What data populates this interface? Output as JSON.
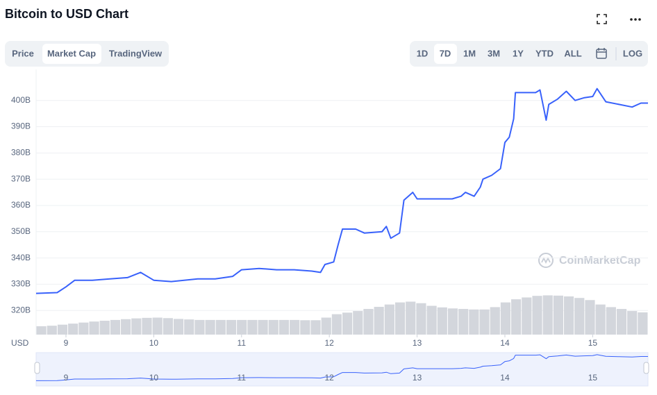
{
  "ui": {
    "title": "Bitcoin to USD Chart",
    "tabs": [
      "Price",
      "Market Cap",
      "TradingView"
    ],
    "active_tab": 1,
    "ranges": [
      "1D",
      "7D",
      "1M",
      "3M",
      "1Y",
      "YTD",
      "ALL"
    ],
    "active_range": 1,
    "log": "LOG",
    "currency": "USD",
    "watermark": "CoinMarketCap"
  },
  "chart_data": {
    "type": "line",
    "xlim": [
      8.66,
      15.63
    ],
    "xticks": [
      9,
      10,
      11,
      12,
      13,
      14,
      15
    ],
    "ylim": [
      310.8,
      410.5
    ],
    "yticks": [
      {
        "value": 320,
        "label": "320B"
      },
      {
        "value": 330,
        "label": "330B"
      },
      {
        "value": 340,
        "label": "340B"
      },
      {
        "value": 350,
        "label": "350B"
      },
      {
        "value": 360,
        "label": "360B"
      },
      {
        "value": 370,
        "label": "370B"
      },
      {
        "value": 380,
        "label": "380B"
      },
      {
        "value": 390,
        "label": "390B"
      },
      {
        "value": 400,
        "label": "400B"
      }
    ],
    "y2lim": [
      0,
      100
    ],
    "grid": true,
    "series": [
      {
        "color": "#3861fb",
        "x": [
          8.66,
          8.9,
          9.0,
          9.1,
          9.3,
          9.5,
          9.7,
          9.85,
          10.0,
          10.2,
          10.5,
          10.7,
          10.9,
          11.0,
          11.2,
          11.4,
          11.6,
          11.8,
          11.9,
          11.95,
          12.05,
          12.1,
          12.15,
          12.3,
          12.4,
          12.6,
          12.65,
          12.7,
          12.8,
          12.85,
          12.95,
          13.0,
          13.2,
          13.4,
          13.5,
          13.55,
          13.65,
          13.72,
          13.75,
          13.85,
          13.95,
          14.0,
          14.05,
          14.1,
          14.12,
          14.2,
          14.35,
          14.4,
          14.47,
          14.5,
          14.6,
          14.7,
          14.8,
          14.9,
          15.0,
          15.05,
          15.15,
          15.3,
          15.45,
          15.55,
          15.63
        ],
        "values": [
          326.5,
          326.8,
          329,
          331.5,
          331.5,
          332,
          332.5,
          334.5,
          331.5,
          331,
          332,
          332,
          333,
          335.5,
          336,
          335.5,
          335.5,
          335,
          334.5,
          337.5,
          338.5,
          345,
          351,
          351,
          349.5,
          350,
          352,
          347.5,
          349.5,
          362,
          365,
          362.5,
          362.5,
          362.5,
          363.5,
          365,
          363.5,
          367,
          370,
          371.5,
          374,
          384,
          386,
          393,
          403,
          403,
          403,
          404,
          392.5,
          398.5,
          400.5,
          403.5,
          400,
          401,
          401.5,
          404.5,
          399.5,
          398.5,
          397.5,
          399,
          399
        ]
      },
      {
        "color": "#d3d6dc",
        "axis": "y2",
        "type": "bar",
        "values": [
          3.2,
          3.4,
          3.8,
          4.2,
          4.6,
          5.0,
          5.3,
          5.6,
          5.9,
          6.2,
          6.4,
          6.5,
          6.3,
          6.0,
          5.8,
          5.6,
          5.6,
          5.6,
          5.6,
          5.6,
          5.6,
          5.6,
          5.6,
          5.6,
          5.6,
          5.5,
          5.5,
          6.5,
          7.8,
          8.4,
          9.0,
          9.8,
          10.6,
          11.5,
          12.3,
          12.6,
          12.0,
          11.0,
          10.4,
          10.0,
          9.8,
          9.6,
          9.6,
          10.5,
          12.3,
          13.5,
          14.2,
          14.8,
          15.0,
          14.9,
          14.6,
          14.0,
          13.2,
          11.5,
          10.5,
          9.8,
          9.0,
          8.5
        ]
      }
    ]
  }
}
